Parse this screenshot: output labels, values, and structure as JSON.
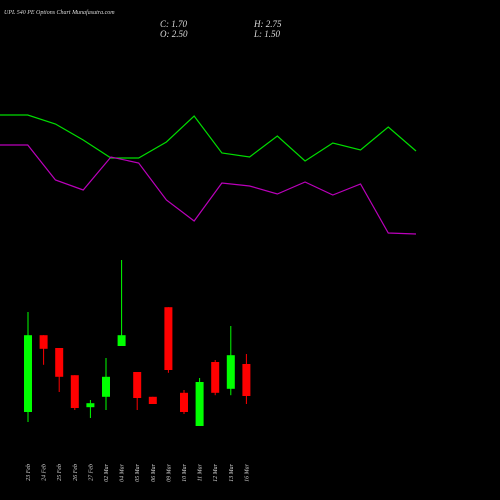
{
  "header": {
    "title": "UPL 540 PE Options Chart Munafasutra.com",
    "close": "C: 1.70",
    "high": "H: 2.75",
    "open": "O: 2.50",
    "low": "L: 1.50"
  },
  "chart_data": [
    {
      "type": "candlestick",
      "categories": [
        "23 Feb",
        "24 Feb",
        "25 Feb",
        "26 Feb",
        "27 Feb",
        "02 Mar",
        "04 Mar",
        "05 Mar",
        "06 Mar",
        "09 Mar",
        "10 Mar",
        "11 Mar",
        "12 Mar",
        "13 Mar",
        "16 Mar"
      ],
      "open": [
        1.3,
        3.22,
        2.9,
        2.22,
        1.42,
        1.68,
        2.95,
        2.3,
        1.68,
        3.92,
        1.78,
        0.95,
        2.55,
        1.88,
        2.5
      ],
      "close": [
        3.22,
        2.88,
        2.18,
        1.4,
        1.52,
        2.18,
        3.22,
        1.65,
        1.5,
        2.35,
        1.3,
        2.05,
        1.78,
        2.72,
        1.7
      ],
      "high": [
        3.8,
        3.22,
        2.9,
        2.22,
        1.6,
        2.65,
        5.1,
        2.3,
        1.68,
        3.92,
        1.85,
        2.15,
        2.6,
        3.45,
        2.75
      ],
      "low": [
        1.05,
        2.48,
        1.8,
        1.35,
        1.15,
        1.35,
        2.95,
        1.35,
        1.5,
        2.28,
        1.25,
        0.95,
        1.72,
        1.72,
        1.5
      ],
      "up_color": "#00ff00",
      "down_color": "#ff0000",
      "ylim": [
        0,
        11.6
      ]
    },
    {
      "type": "line",
      "categories": [
        null,
        null,
        null,
        null,
        null,
        null,
        null,
        null,
        null,
        null,
        null,
        null,
        null,
        null,
        null,
        null
      ],
      "series": [
        {
          "color": "#00dd00",
          "values": [
            385,
            385,
            376,
            360,
            342,
            342,
            358,
            384,
            347,
            343,
            364,
            339,
            357,
            350,
            373,
            349
          ]
        },
        {
          "color": "#bb00bb",
          "values": [
            355,
            355,
            320,
            310,
            343,
            337,
            300,
            279,
            317,
            314,
            306,
            318,
            305,
            316,
            267,
            266
          ]
        }
      ],
      "ylim": [
        0,
        500
      ]
    }
  ]
}
